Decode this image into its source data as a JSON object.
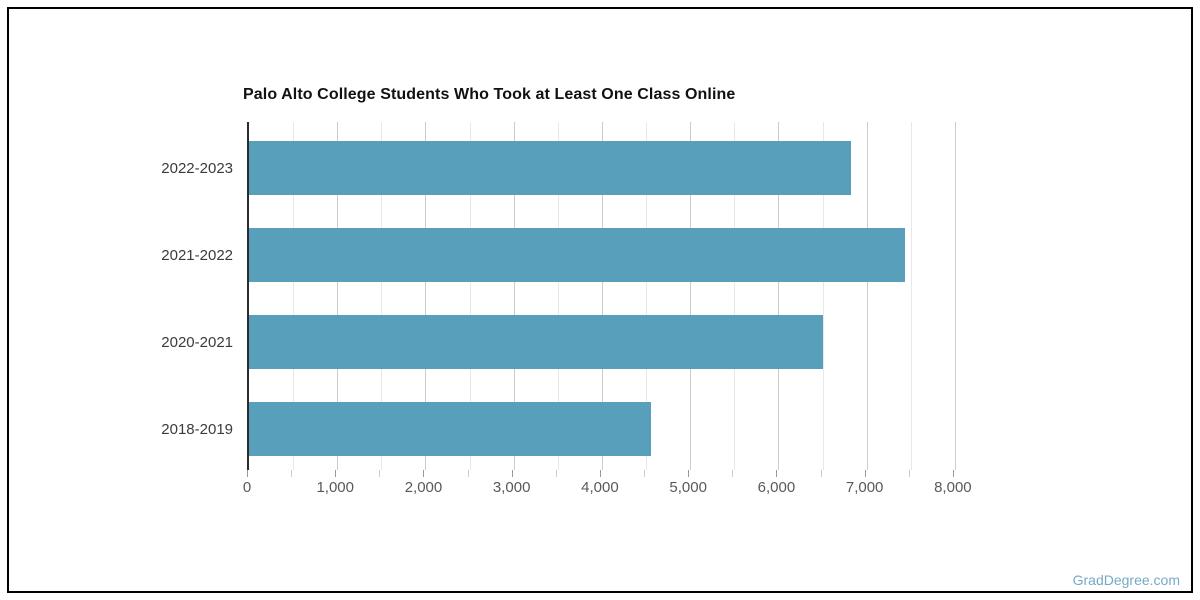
{
  "watermark": {
    "text": "GradDegree.com",
    "color": "#74aac6"
  },
  "chart_data": {
    "type": "bar",
    "orientation": "horizontal",
    "title": "Palo Alto College Students Who Took at Least One Class Online",
    "categories": [
      "2022-2023",
      "2021-2022",
      "2020-2021",
      "2018-2019"
    ],
    "values": [
      6820,
      7430,
      6500,
      4560
    ],
    "xlabel": "",
    "ylabel": "",
    "xlim": [
      0,
      8500
    ],
    "xticks": [
      0,
      1000,
      2000,
      3000,
      4000,
      5000,
      6000,
      7000,
      8000
    ],
    "xtick_labels": [
      "0",
      "1,000",
      "2,000",
      "3,000",
      "4,000",
      "5,000",
      "6,000",
      "7,000",
      "8,000"
    ],
    "gridline_interval": 500,
    "grid": true,
    "legend_position": "none",
    "bar_color": "#589fbb",
    "minor_gridline_color": "#e8e8e8",
    "major_gridline_color": "#cccccc",
    "axis_line_color": "#2b2b2b",
    "major_tick_color": "#999999",
    "minor_tick_color": "#cccccc"
  }
}
